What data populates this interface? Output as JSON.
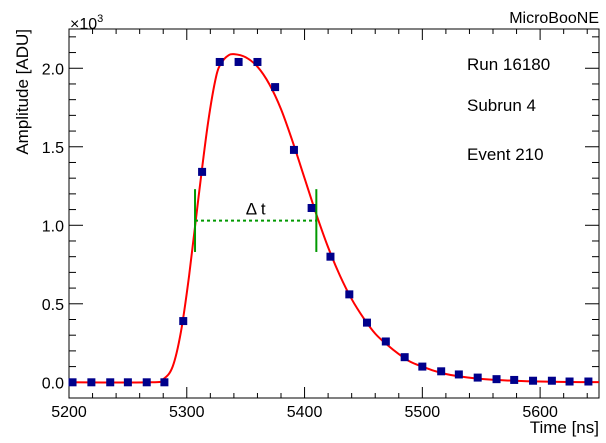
{
  "chart_data": {
    "type": "scatter",
    "experiment_label": "MicroBooNE",
    "xlabel": "Time [ns]",
    "ylabel": "Amplitude [ADU]",
    "y_exponent_label": "×10",
    "y_exponent_power": "3",
    "xlim": [
      5200,
      5650
    ],
    "ylim": [
      -0.1,
      2.25
    ],
    "x_ticks": [
      5200,
      5300,
      5400,
      5500,
      5600
    ],
    "x_tick_labels": [
      "5200",
      "5300",
      "5400",
      "5500",
      "5600"
    ],
    "y_ticks": [
      0.0,
      0.5,
      1.0,
      1.5,
      2.0
    ],
    "y_tick_labels": [
      "0.0",
      "0.5",
      "1.0",
      "1.5",
      "2.0"
    ],
    "annotations": {
      "run": "Run 16180",
      "subrun": "Subrun 4",
      "event": "Event 210",
      "delta_t": "Δ t"
    },
    "delta_t": {
      "x_start": 5307,
      "x_end": 5410,
      "y": 1.03,
      "half_height": 0.2
    },
    "grid": false,
    "colors": {
      "points": "#00008b",
      "fit_line": "#ff0000",
      "delta_t_marker": "#009900"
    },
    "series": [
      {
        "kind": "points",
        "x": [
          5203,
          5219,
          5235,
          5250,
          5266,
          5281,
          5297,
          5313,
          5328,
          5344,
          5360,
          5375,
          5391,
          5406,
          5422,
          5438,
          5453,
          5469,
          5485,
          5500,
          5516,
          5531,
          5547,
          5563,
          5578,
          5594,
          5610,
          5625,
          5641
        ],
        "y": [
          0.0,
          0.0,
          0.0,
          0.0,
          0.0,
          0.0,
          0.39,
          1.34,
          2.04,
          2.04,
          2.04,
          1.88,
          1.48,
          1.11,
          0.8,
          0.56,
          0.38,
          0.26,
          0.16,
          0.1,
          0.07,
          0.05,
          0.03,
          0.02,
          0.015,
          0.01,
          0.01,
          0.005,
          0.005
        ]
      },
      {
        "kind": "fit",
        "x": [
          5200,
          5270,
          5280,
          5288,
          5295,
          5302,
          5310,
          5318,
          5325,
          5330,
          5335,
          5340,
          5350,
          5360,
          5370,
          5380,
          5390,
          5400,
          5410,
          5420,
          5430,
          5440,
          5450,
          5460,
          5470,
          5480,
          5490,
          5500,
          5510,
          5520,
          5530,
          5545,
          5560,
          5580,
          5600,
          5625,
          5650
        ],
        "y": [
          0.0,
          0.0,
          0.02,
          0.1,
          0.32,
          0.68,
          1.18,
          1.65,
          1.95,
          2.04,
          2.08,
          2.09,
          2.07,
          2.01,
          1.9,
          1.74,
          1.53,
          1.3,
          1.07,
          0.86,
          0.68,
          0.53,
          0.41,
          0.31,
          0.24,
          0.18,
          0.13,
          0.1,
          0.073,
          0.053,
          0.039,
          0.025,
          0.016,
          0.009,
          0.005,
          0.002,
          0.001
        ]
      }
    ]
  }
}
